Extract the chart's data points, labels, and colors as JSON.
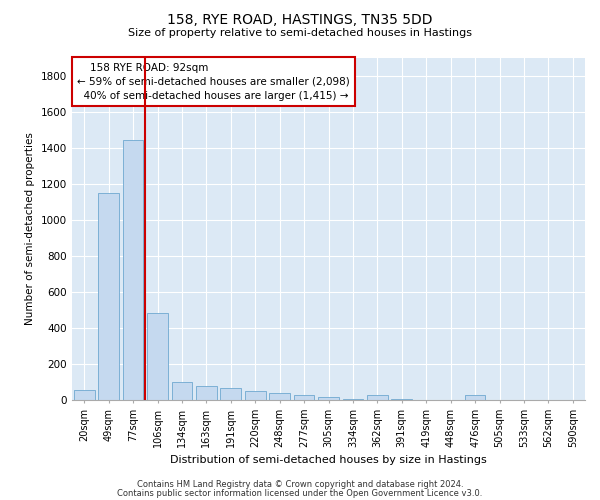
{
  "title": "158, RYE ROAD, HASTINGS, TN35 5DD",
  "subtitle": "Size of property relative to semi-detached houses in Hastings",
  "xlabel": "Distribution of semi-detached houses by size in Hastings",
  "ylabel": "Number of semi-detached properties",
  "categories": [
    "20sqm",
    "49sqm",
    "77sqm",
    "106sqm",
    "134sqm",
    "163sqm",
    "191sqm",
    "220sqm",
    "248sqm",
    "277sqm",
    "305sqm",
    "334sqm",
    "362sqm",
    "391sqm",
    "419sqm",
    "448sqm",
    "476sqm",
    "505sqm",
    "533sqm",
    "562sqm",
    "590sqm"
  ],
  "values": [
    55,
    1150,
    1440,
    480,
    100,
    80,
    65,
    50,
    40,
    30,
    15,
    8,
    30,
    4,
    0,
    0,
    30,
    0,
    0,
    0,
    0
  ],
  "bar_color": "#c5d9ef",
  "bar_edge_color": "#6fa8d0",
  "red_line_label": "158 RYE ROAD: 92sqm",
  "smaller_pct": "59%",
  "smaller_count": "2,098",
  "larger_pct": "40%",
  "larger_count": "1,415",
  "ylim": [
    0,
    1900
  ],
  "yticks": [
    0,
    200,
    400,
    600,
    800,
    1000,
    1200,
    1400,
    1600,
    1800
  ],
  "bg_color": "#dce9f5",
  "footer_line1": "Contains HM Land Registry data © Crown copyright and database right 2024.",
  "footer_line2": "Contains public sector information licensed under the Open Government Licence v3.0."
}
